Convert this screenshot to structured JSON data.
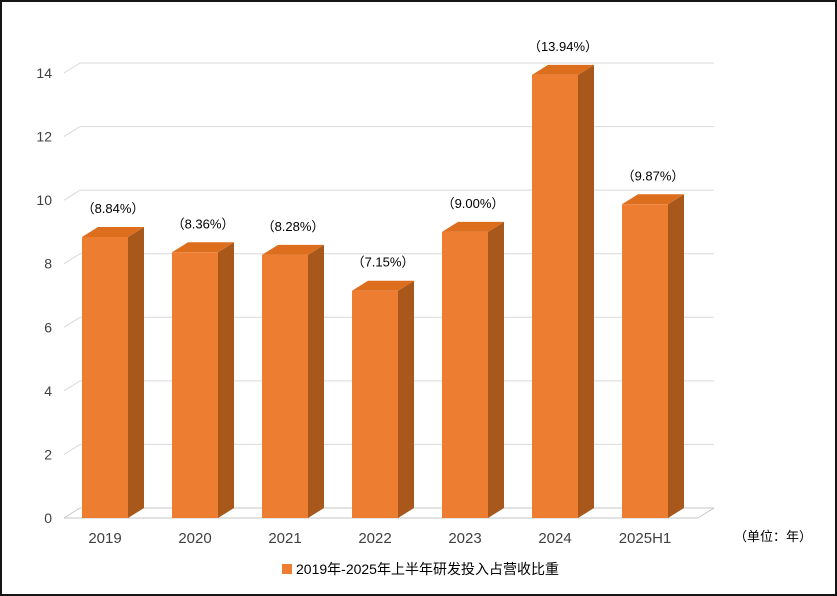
{
  "chart_data": {
    "type": "bar",
    "style": "3d-column",
    "title": "",
    "categories": [
      "2019",
      "2020",
      "2021",
      "2022",
      "2023",
      "2024",
      "2025H1"
    ],
    "values": [
      8.84,
      8.36,
      8.28,
      7.15,
      9.0,
      13.94,
      9.87
    ],
    "data_labels": [
      "（8.84%）",
      "（8.36%）",
      "（8.28%）",
      "（7.15%）",
      "（9.00%）",
      "（13.94%）",
      "（9.87%）"
    ],
    "y_ticks": [
      0,
      2,
      4,
      6,
      8,
      10,
      12,
      14
    ],
    "ylim": [
      0,
      14
    ],
    "xlabel": "",
    "ylabel": "",
    "grid": true,
    "legend": "2019年-2025年上半年研发投入占营收比重",
    "legend_position": "bottom",
    "unit_note": "（单位：年）",
    "colors": {
      "bar_front": "#ED7D31",
      "bar_top": "#DD6E1E",
      "bar_side": "#A9581B",
      "gridline": "#D9D9D9",
      "baseline": "#C6C6C6",
      "axis_text": "#404040",
      "label_text": "#000000"
    }
  }
}
